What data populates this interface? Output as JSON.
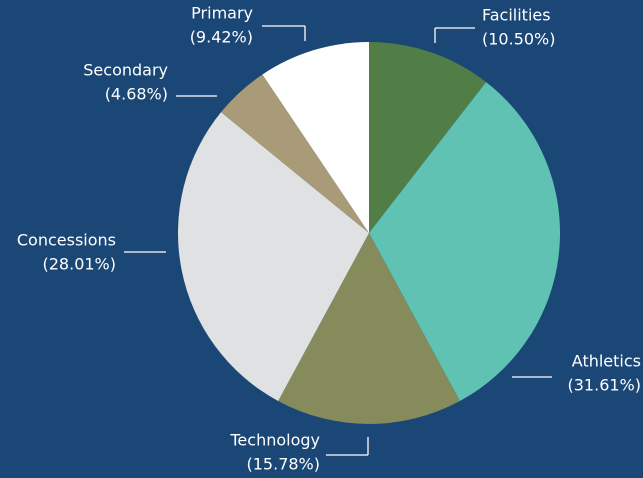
{
  "chart_data": {
    "type": "pie",
    "categories": [
      "Facilities",
      "Athletics",
      "Technology",
      "Concessions",
      "Secondary",
      "Primary"
    ],
    "values": [
      10.5,
      31.61,
      15.78,
      28.01,
      4.68,
      9.42
    ],
    "value_labels": [
      "(10.50%)",
      "(31.61%)",
      "(15.78%)",
      "(28.01%)",
      "(4.68%)",
      "(9.42%)"
    ],
    "colors": [
      "#517e47",
      "#5fc2b3",
      "#858b5a",
      "#e0e1e3",
      "#a99b78",
      "#ffffff"
    ]
  }
}
